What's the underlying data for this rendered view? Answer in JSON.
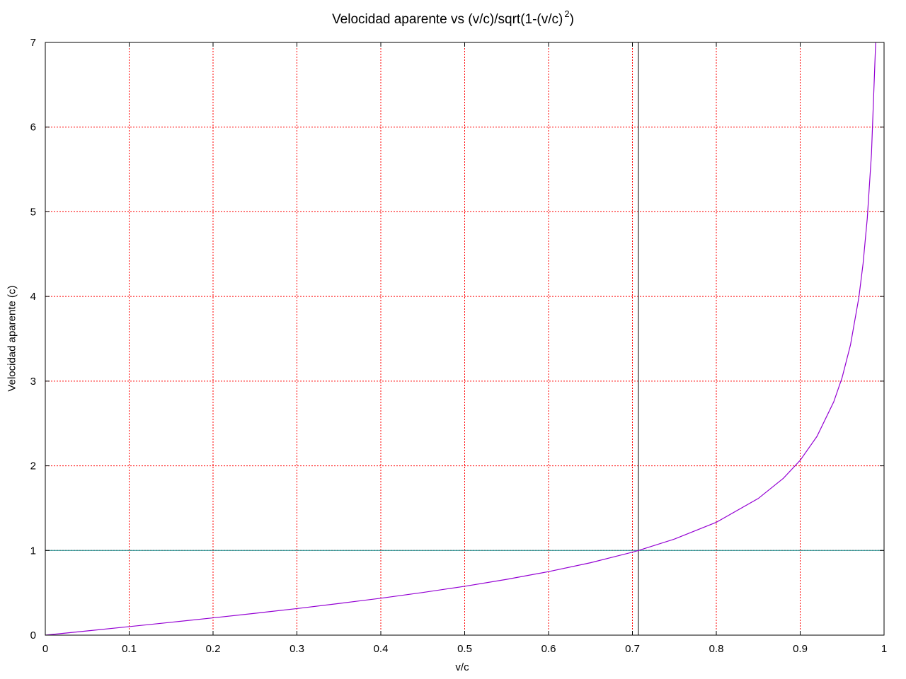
{
  "chart_data": {
    "type": "line",
    "title": {
      "main": "Velocidad aparente vs (v/c)/sqrt(1-(v/c)",
      "exponent": "2",
      "close": ")"
    },
    "xlabel": "v/c",
    "ylabel": "Velocidad aparente (c)",
    "xlim": [
      0,
      1
    ],
    "ylim": [
      0,
      7
    ],
    "x_ticks": [
      "0",
      "0.1",
      "0.2",
      "0.3",
      "0.4",
      "0.5",
      "0.6",
      "0.7",
      "0.8",
      "0.9",
      "1"
    ],
    "y_ticks": [
      "0",
      "1",
      "2",
      "3",
      "4",
      "5",
      "6",
      "7"
    ],
    "grid": true,
    "colors": {
      "grid": "#ff0000",
      "curve": "#9400d3",
      "reference_line": "#008b8b",
      "vertical_marker": "#000000"
    },
    "series": [
      {
        "x": [
          0,
          0.05,
          0.1,
          0.15,
          0.2,
          0.25,
          0.3,
          0.35,
          0.4,
          0.45,
          0.5,
          0.55,
          0.6,
          0.65,
          0.7,
          0.7071,
          0.75,
          0.8,
          0.85,
          0.88,
          0.9,
          0.92,
          0.94,
          0.95,
          0.96,
          0.97,
          0.975,
          0.98,
          0.985,
          0.99
        ],
        "y": [
          0,
          0.05,
          0.101,
          0.152,
          0.204,
          0.258,
          0.314,
          0.374,
          0.436,
          0.504,
          0.577,
          0.659,
          0.75,
          0.855,
          0.98,
          1.0,
          1.134,
          1.333,
          1.614,
          1.853,
          2.065,
          2.347,
          2.755,
          3.042,
          3.429,
          3.99,
          4.39,
          4.924,
          5.686,
          7.0
        ]
      }
    ],
    "reference_line_y": 1,
    "vertical_marker_x": 0.7071
  }
}
